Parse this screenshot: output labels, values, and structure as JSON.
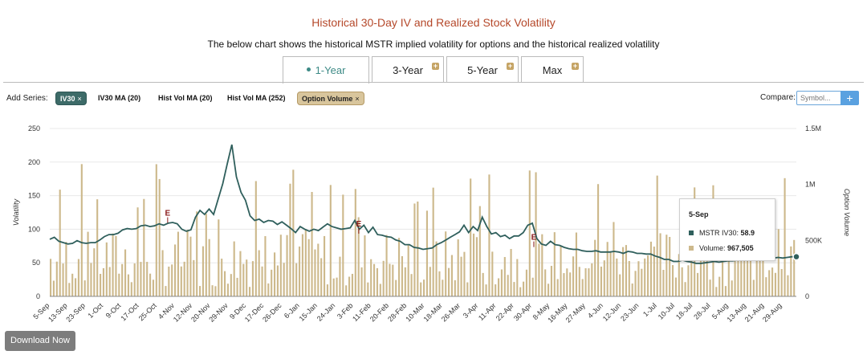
{
  "header": {
    "title": "Historical 30-Day IV and Realized Stock Volatility",
    "subtitle": "The below chart shows the historical MSTR implied volatility for options and the historical realized volatility"
  },
  "tabs": [
    {
      "label": "1-Year",
      "active": true
    },
    {
      "label": "3-Year",
      "active": false
    },
    {
      "label": "5-Year",
      "active": false
    },
    {
      "label": "Max",
      "active": false
    }
  ],
  "series_bar": {
    "label": "Add Series:",
    "chips": [
      {
        "label": "IV30",
        "active": true,
        "remove": "×"
      },
      {
        "label": "IV30 MA (20)",
        "active": false
      },
      {
        "label": "Hist Vol MA (20)",
        "active": false
      },
      {
        "label": "Hist Vol MA (252)",
        "active": false
      },
      {
        "label": "Option Volume",
        "active": true,
        "remove": "×"
      }
    ]
  },
  "compare": {
    "label": "Compare:",
    "placeholder": "Symbol...",
    "add": "+"
  },
  "download": {
    "label": "Download Now"
  },
  "tooltip": {
    "date": "5-Sep",
    "iv_label": "MSTR IV30:",
    "iv_value": "58.9",
    "vol_label": "Volume:",
    "vol_value": "967,505"
  },
  "colors": {
    "iv30": "#2f5f5c",
    "volume": "#cdb98c",
    "title": "#b5482a",
    "accent": "#3d8a86"
  },
  "chart_data": {
    "type": "line+bar",
    "ylabel_left": "Volatility",
    "ylabel_right": "Option Volume",
    "y_left_ticks": [
      "0",
      "50",
      "100",
      "150",
      "200",
      "250"
    ],
    "y_left_range": [
      0,
      250
    ],
    "y_right_ticks": [
      "0",
      "500K",
      "1M",
      "1.5M"
    ],
    "y_right_range": [
      0,
      1500000
    ],
    "x_ticks": [
      "5-Sep",
      "13-Sep",
      "23-Sep",
      "1-Oct",
      "9-Oct",
      "17-Oct",
      "25-Oct",
      "4-Nov",
      "12-Nov",
      "20-Nov",
      "29-Nov",
      "9-Dec",
      "17-Dec",
      "26-Dec",
      "6-Jan",
      "15-Jan",
      "24-Jan",
      "3-Feb",
      "11-Feb",
      "20-Feb",
      "28-Feb",
      "10-Mar",
      "18-Mar",
      "26-Mar",
      "3-Apr",
      "11-Apr",
      "22-Apr",
      "30-Apr",
      "8-May",
      "16-May",
      "27-May",
      "4-Jun",
      "12-Jun",
      "23-Jun",
      "1-Jul",
      "10-Jul",
      "18-Jul",
      "28-Jul",
      "5-Aug",
      "13-Aug",
      "21-Aug",
      "29-Aug"
    ],
    "earnings_markers": [
      {
        "label": "E",
        "x": "30-Oct",
        "iv": 113
      },
      {
        "label": "E",
        "x": "5-Feb",
        "iv": 97
      },
      {
        "label": "E",
        "x": "1-May",
        "iv": 77
      }
    ],
    "iv30": [
      85,
      88,
      82,
      80,
      78,
      79,
      83,
      80,
      79,
      80,
      80,
      84,
      89,
      92,
      92,
      94,
      99,
      101,
      100,
      101,
      105,
      106,
      104,
      105,
      108,
      106,
      109,
      110,
      108,
      100,
      97,
      99,
      118,
      128,
      122,
      130,
      122,
      145,
      168,
      198,
      226,
      178,
      155,
      143,
      120,
      113,
      115,
      110,
      113,
      112,
      107,
      111,
      106,
      101,
      95,
      104,
      100,
      97,
      100,
      98,
      103,
      108,
      104,
      102,
      100,
      101,
      102,
      113,
      100,
      106,
      95,
      103,
      92,
      91,
      89,
      88,
      84,
      82,
      77,
      77,
      73,
      72,
      70,
      71,
      72,
      77,
      80,
      84,
      88,
      92,
      96,
      106,
      95,
      104,
      98,
      118,
      104,
      93,
      95,
      89,
      91,
      86,
      90,
      90,
      95,
      106,
      109,
      86,
      78,
      76,
      82,
      77,
      76,
      73,
      71,
      70,
      70,
      68,
      67,
      67,
      68,
      66,
      66,
      66,
      67,
      66,
      64,
      67,
      66,
      64,
      64,
      63,
      63,
      60,
      58,
      55,
      55,
      52,
      52,
      54,
      52,
      51,
      49,
      49,
      50,
      51,
      52,
      51,
      52,
      53,
      53,
      54,
      54,
      55,
      55,
      55,
      56,
      56,
      57,
      57,
      58,
      57,
      58,
      59,
      59
    ]
  }
}
